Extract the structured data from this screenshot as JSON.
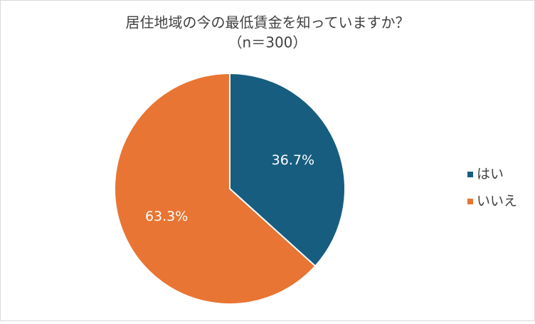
{
  "chart_data": {
    "type": "pie",
    "title": "居住地域の今の最低賃金を知っていますか？",
    "subtitle": "（n＝300）",
    "categories": [
      "はい",
      "いいえ"
    ],
    "values": [
      36.7,
      63.3
    ],
    "value_labels": [
      "36.7%",
      "63.3%"
    ],
    "colors": [
      "#175d80",
      "#e87533"
    ],
    "legend": "right"
  }
}
